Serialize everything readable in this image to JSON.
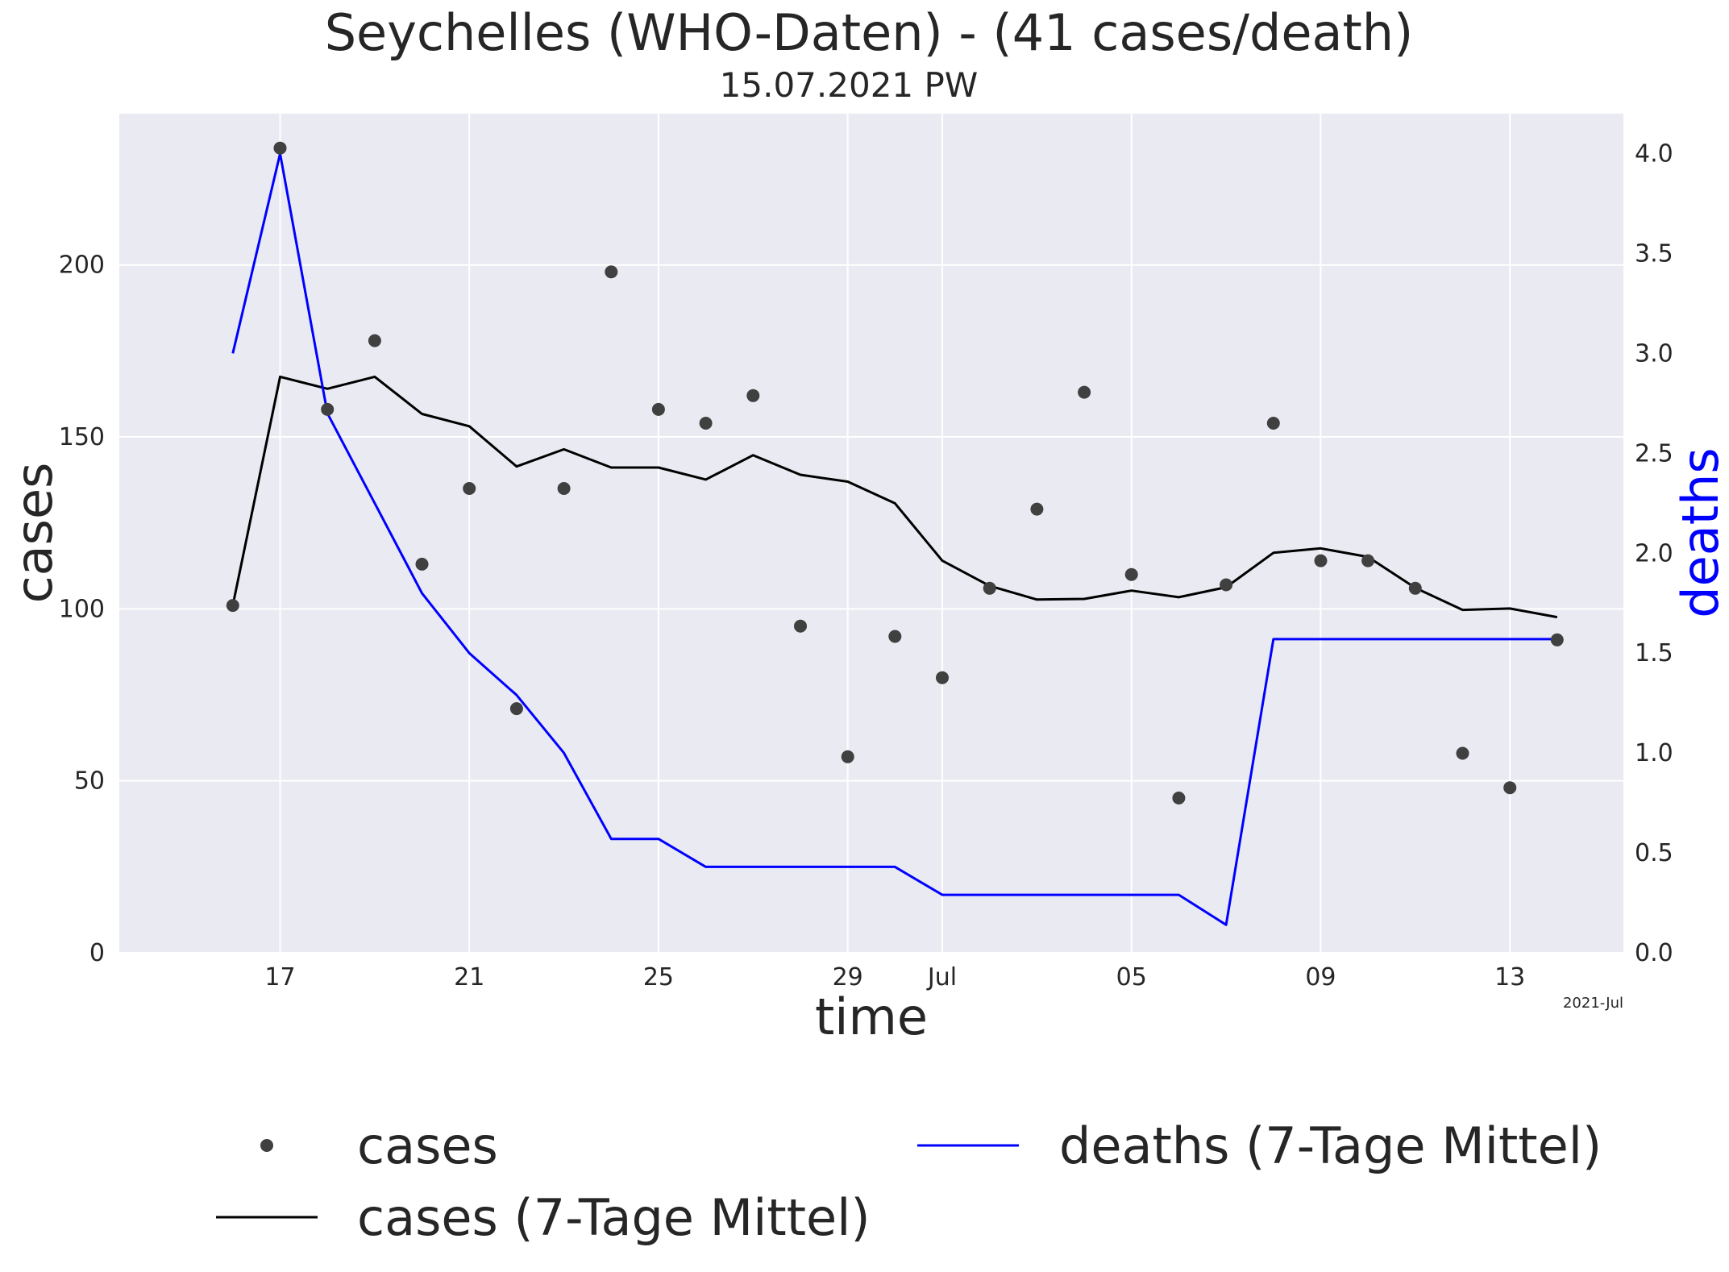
{
  "chart_data": {
    "type": "scatter",
    "title": "Seychelles (WHO-Daten) - (41 cases/death)",
    "subtitle": "15.07.2021 PW",
    "xlabel": "time",
    "ylabel": "cases",
    "y2label": "deaths",
    "x_tick_labels": [
      "17",
      "21",
      "25",
      "29",
      "Jul",
      "05",
      "09",
      "13"
    ],
    "x_offset_label": "2021-Jul",
    "x_dates": [
      "2021-06-16",
      "2021-06-17",
      "2021-06-18",
      "2021-06-19",
      "2021-06-20",
      "2021-06-21",
      "2021-06-22",
      "2021-06-23",
      "2021-06-24",
      "2021-06-25",
      "2021-06-26",
      "2021-06-27",
      "2021-06-28",
      "2021-06-29",
      "2021-06-30",
      "2021-07-01",
      "2021-07-02",
      "2021-07-03",
      "2021-07-04",
      "2021-07-05",
      "2021-07-06",
      "2021-07-07",
      "2021-07-08",
      "2021-07-09",
      "2021-07-10",
      "2021-07-11",
      "2021-07-12",
      "2021-07-13",
      "2021-07-14"
    ],
    "ylim": [
      0,
      244
    ],
    "y_ticks": [
      0,
      50,
      100,
      150,
      200
    ],
    "y2lim": [
      0,
      4.2
    ],
    "y2_ticks": [
      "0.0",
      "0.5",
      "1.0",
      "1.5",
      "2.0",
      "2.5",
      "3.0",
      "3.5",
      "4.0"
    ],
    "grid": true,
    "legend_position": "bottom",
    "series": [
      {
        "name": "cases",
        "kind": "points",
        "axis": "left",
        "color": "#404040",
        "values": [
          101,
          234,
          158,
          178,
          113,
          135,
          71,
          135,
          198,
          158,
          154,
          162,
          95,
          57,
          92,
          80,
          106,
          129,
          163,
          110,
          45,
          107,
          154,
          114,
          114,
          106,
          58,
          48,
          91
        ]
      },
      {
        "name": "cases (7-Tage Mittel)",
        "kind": "line",
        "axis": "left",
        "color": "#000000",
        "values": [
          101,
          167.5,
          164,
          167.5,
          156.7,
          153.1,
          141.4,
          146.4,
          141.1,
          141.1,
          137.6,
          144.7,
          139,
          137,
          130.7,
          114,
          106.7,
          102.7,
          102.9,
          105.3,
          103.4,
          106.3,
          116.3,
          117.6,
          115.1,
          106.1,
          99.7,
          100.1,
          97.6
        ]
      },
      {
        "name": "deaths (7-Tage Mittel)",
        "kind": "line",
        "axis": "right",
        "color": "#0000ff",
        "values": [
          3.0,
          4.0,
          2.7,
          2.25,
          1.8,
          1.5,
          1.29,
          1.0,
          0.57,
          0.57,
          0.43,
          0.43,
          0.43,
          0.43,
          0.43,
          0.29,
          0.29,
          0.29,
          0.29,
          0.29,
          0.29,
          0.14,
          1.57,
          1.57,
          1.57,
          1.57,
          1.57,
          1.57,
          1.57
        ]
      }
    ]
  }
}
